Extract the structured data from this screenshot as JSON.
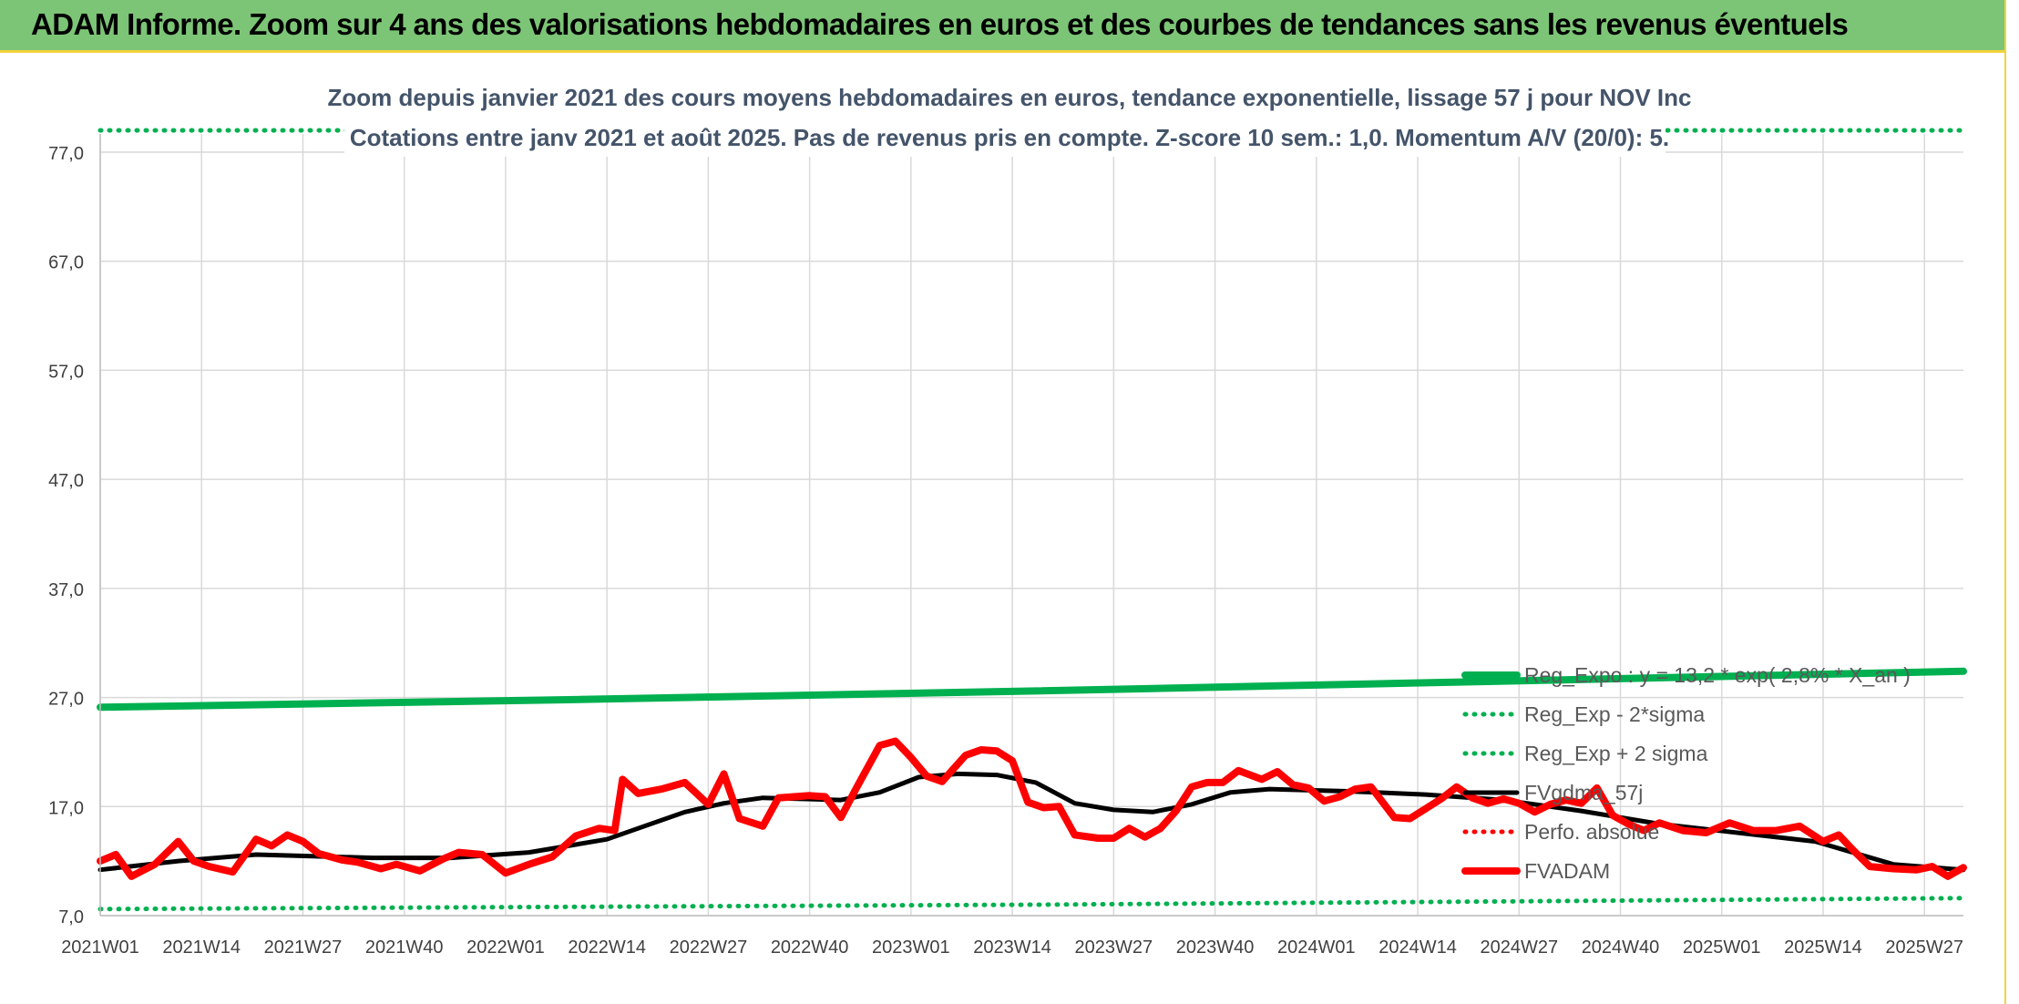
{
  "header": {
    "title": "ADAM Informe. Zoom sur 4 ans des valorisations hebdomadaires en euros et des courbes de tendances sans les revenus éventuels"
  },
  "colors": {
    "header_bg": "#7cc576",
    "accent_border": "#f4d23c",
    "regression": "#00b050",
    "price": "#ff0000",
    "smoothing": "#000000",
    "title_text": "#44546a"
  },
  "chart_data": {
    "type": "line",
    "title": "Zoom depuis janvier 2021 des cours moyens hebdomadaires en euros, tendance exponentielle, lissage 57 j pour NOV Inc",
    "subtitle": "Cotations entre janv 2021 et août 2025. Pas de revenus pris en compte. Z-score 10 sem.: 1,0. Momentum A/V (20/0): 5.",
    "xlabel": "",
    "ylabel": "",
    "ylim": [
      7,
      77
    ],
    "yticks": [
      "77,0",
      "67,0",
      "57,0",
      "47,0",
      "37,0",
      "27,0",
      "17,0",
      "7,0"
    ],
    "ytick_values": [
      77,
      67,
      57,
      47,
      37,
      27,
      17,
      7
    ],
    "xticks": [
      "2021W01",
      "2021W14",
      "2021W27",
      "2021W40",
      "2022W01",
      "2022W14",
      "2022W27",
      "2022W40",
      "2023W01",
      "2023W14",
      "2023W27",
      "2023W40",
      "2024W01",
      "2024W14",
      "2024W27",
      "2024W40",
      "2025W01",
      "2025W14",
      "2025W27"
    ],
    "week_count": 240,
    "grid": true,
    "legend_position": "right",
    "series": [
      {
        "name": "Reg_Expo : y = 13,2 * exp( 2,8% * X_an )",
        "style": "solid-thick",
        "color": "#00b050",
        "x": [
          0,
          60,
          120,
          180,
          239
        ],
        "y": [
          26.1,
          26.8,
          27.6,
          28.5,
          29.4
        ]
      },
      {
        "name": "Reg_Exp - 2*sigma",
        "style": "dotted",
        "color": "#00b050",
        "x": [
          0,
          60,
          120,
          180,
          239
        ],
        "y": [
          7.6,
          7.8,
          8.0,
          8.3,
          8.6
        ]
      },
      {
        "name": "Reg_Exp + 2 sigma",
        "style": "dotted",
        "color": "#00b050",
        "x": [
          0,
          239
        ],
        "y": [
          79.0,
          79.0
        ]
      },
      {
        "name": "FVgdma_57j",
        "style": "solid",
        "color": "#000000",
        "x": [
          0,
          10,
          20,
          35,
          45,
          55,
          65,
          75,
          80,
          85,
          95,
          100,
          105,
          110,
          115,
          120,
          125,
          130,
          135,
          140,
          145,
          150,
          160,
          170,
          180,
          190,
          200,
          210,
          220,
          230,
          239
        ],
        "y": [
          11.2,
          12.0,
          12.6,
          12.3,
          12.3,
          12.8,
          14.0,
          16.5,
          17.3,
          17.8,
          17.6,
          18.3,
          19.7,
          20.0,
          19.9,
          19.2,
          17.3,
          16.7,
          16.5,
          17.2,
          18.3,
          18.6,
          18.4,
          18.1,
          17.6,
          16.6,
          15.4,
          14.6,
          13.8,
          11.7,
          11.2
        ]
      },
      {
        "name": "Perfo. absolue",
        "style": "dotted",
        "color": "#ff0000",
        "x": [],
        "y": []
      },
      {
        "name": "FVADAM",
        "style": "solid-thick",
        "color": "#ff0000",
        "x": [
          0,
          2,
          4,
          7,
          10,
          12,
          14,
          17,
          20,
          22,
          24,
          26,
          28,
          31,
          33,
          36,
          38,
          41,
          44,
          46,
          49,
          52,
          55,
          58,
          61,
          64,
          66,
          67,
          69,
          72,
          75,
          78,
          80,
          82,
          85,
          87,
          89,
          91,
          93,
          95,
          97,
          100,
          102,
          104,
          106,
          108,
          111,
          113,
          115,
          117,
          119,
          121,
          123,
          125,
          128,
          130,
          132,
          134,
          136,
          138,
          140,
          142,
          144,
          146,
          149,
          151,
          153,
          155,
          157,
          159,
          161,
          163,
          166,
          168,
          170,
          172,
          174,
          176,
          178,
          180,
          182,
          184,
          186,
          188,
          190,
          192,
          194,
          196,
          198,
          200,
          203,
          206,
          209,
          212,
          215,
          218,
          221,
          223,
          225,
          227,
          230,
          233,
          235,
          237,
          239
        ],
        "y": [
          12.0,
          12.6,
          10.6,
          11.7,
          13.8,
          12.0,
          11.5,
          11.0,
          14.0,
          13.4,
          14.4,
          13.8,
          12.7,
          12.1,
          11.9,
          11.3,
          11.7,
          11.1,
          12.2,
          12.8,
          12.6,
          10.9,
          11.7,
          12.4,
          14.3,
          15.0,
          14.8,
          19.5,
          18.2,
          18.6,
          19.2,
          17.2,
          20.0,
          15.9,
          15.2,
          17.8,
          17.9,
          18.0,
          17.9,
          16.0,
          18.7,
          22.6,
          23.0,
          21.5,
          19.8,
          19.3,
          21.7,
          22.2,
          22.1,
          21.2,
          17.4,
          16.9,
          17.0,
          14.4,
          14.1,
          14.1,
          15.0,
          14.2,
          15.0,
          16.6,
          18.8,
          19.2,
          19.2,
          20.3,
          19.5,
          20.2,
          19.0,
          18.7,
          17.5,
          17.9,
          18.6,
          18.8,
          16.0,
          15.9,
          16.8,
          17.7,
          18.8,
          17.8,
          17.3,
          17.7,
          17.3,
          16.5,
          17.2,
          17.6,
          17.3,
          18.7,
          16.2,
          15.4,
          14.8,
          15.5,
          14.8,
          14.6,
          15.5,
          14.8,
          14.8,
          15.2,
          13.8,
          14.4,
          12.9,
          11.5,
          11.3,
          11.2,
          11.5,
          10.6,
          11.4
        ]
      }
    ]
  }
}
